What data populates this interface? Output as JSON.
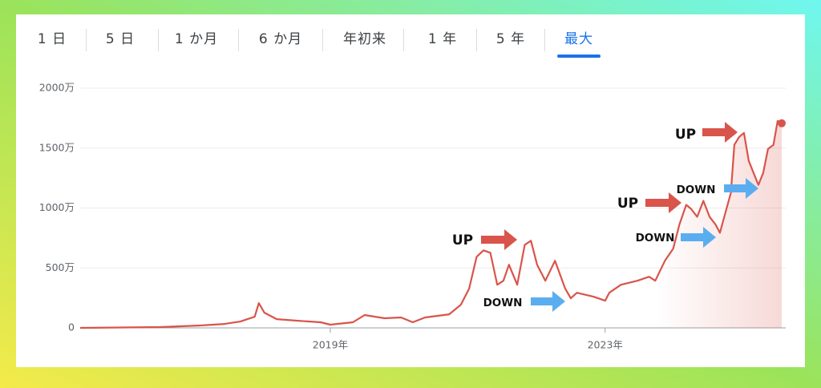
{
  "tabs": [
    "1 日",
    "5 日",
    "1 か月",
    "6 か月",
    "年初来",
    "1 年",
    "5 年",
    "最大"
  ],
  "active_tab": 7,
  "chart_data": {
    "type": "line",
    "x": [
      2015.36,
      2016.53,
      2017.11,
      2017.46,
      2017.69,
      2017.9,
      2017.96,
      2018.04,
      2018.22,
      2018.51,
      2018.86,
      2019.0,
      2019.33,
      2019.5,
      2019.79,
      2020.03,
      2020.2,
      2020.38,
      2020.73,
      2020.9,
      2021.02,
      2021.13,
      2021.23,
      2021.33,
      2021.43,
      2021.52,
      2021.6,
      2021.72,
      2021.83,
      2021.92,
      2022.01,
      2022.13,
      2022.27,
      2022.42,
      2022.5,
      2022.59,
      2022.83,
      2023.0,
      2023.06,
      2023.23,
      2023.47,
      2023.64,
      2023.73,
      2023.87,
      2023.99,
      2024.08,
      2024.18,
      2024.25,
      2024.34,
      2024.43,
      2024.52,
      2024.61,
      2024.67,
      2024.75,
      2024.83,
      2024.88,
      2024.95,
      2025.02,
      2025.09,
      2025.16,
      2025.23,
      2025.3,
      2025.37,
      2025.45,
      2025.51,
      2025.57
    ],
    "series": [
      {
        "color": "#d9544a",
        "values": [
          0,
          7,
          20,
          33,
          53,
          93,
          207,
          127,
          73,
          60,
          47,
          27,
          47,
          107,
          80,
          87,
          47,
          87,
          113,
          193,
          327,
          593,
          647,
          627,
          360,
          393,
          527,
          360,
          693,
          727,
          527,
          393,
          560,
          327,
          247,
          293,
          260,
          227,
          293,
          360,
          393,
          427,
          393,
          560,
          660,
          860,
          1027,
          993,
          927,
          1060,
          927,
          860,
          793,
          960,
          1127,
          1527,
          1593,
          1627,
          1393,
          1293,
          1193,
          1293,
          1493,
          1527,
          1727,
          1707
        ]
      }
    ],
    "xlim": [
      2015.36,
      2025.57
    ],
    "xticks": [
      {
        "value": 2019,
        "label": "2019年"
      },
      {
        "value": 2023,
        "label": "2023年"
      }
    ],
    "ylim": [
      0,
      2000
    ],
    "yticks": [
      0,
      {
        "value": 500,
        "label": "500万"
      },
      {
        "value": 1000,
        "label": "1000万"
      },
      {
        "value": 1500,
        "label": "1500万"
      },
      {
        "value": 2000,
        "label": "2000万"
      }
    ],
    "grid": true,
    "annotations": [
      {
        "text": "UP",
        "color": "#d9544a"
      },
      {
        "text": "DOWN",
        "color": "#5aaef0"
      },
      {
        "text": "UP",
        "color": "#d9544a"
      },
      {
        "text": "DOWN",
        "color": "#5aaef0"
      },
      {
        "text": "DOWN",
        "color": "#5aaef0"
      },
      {
        "text": "UP",
        "color": "#d9544a"
      }
    ]
  }
}
